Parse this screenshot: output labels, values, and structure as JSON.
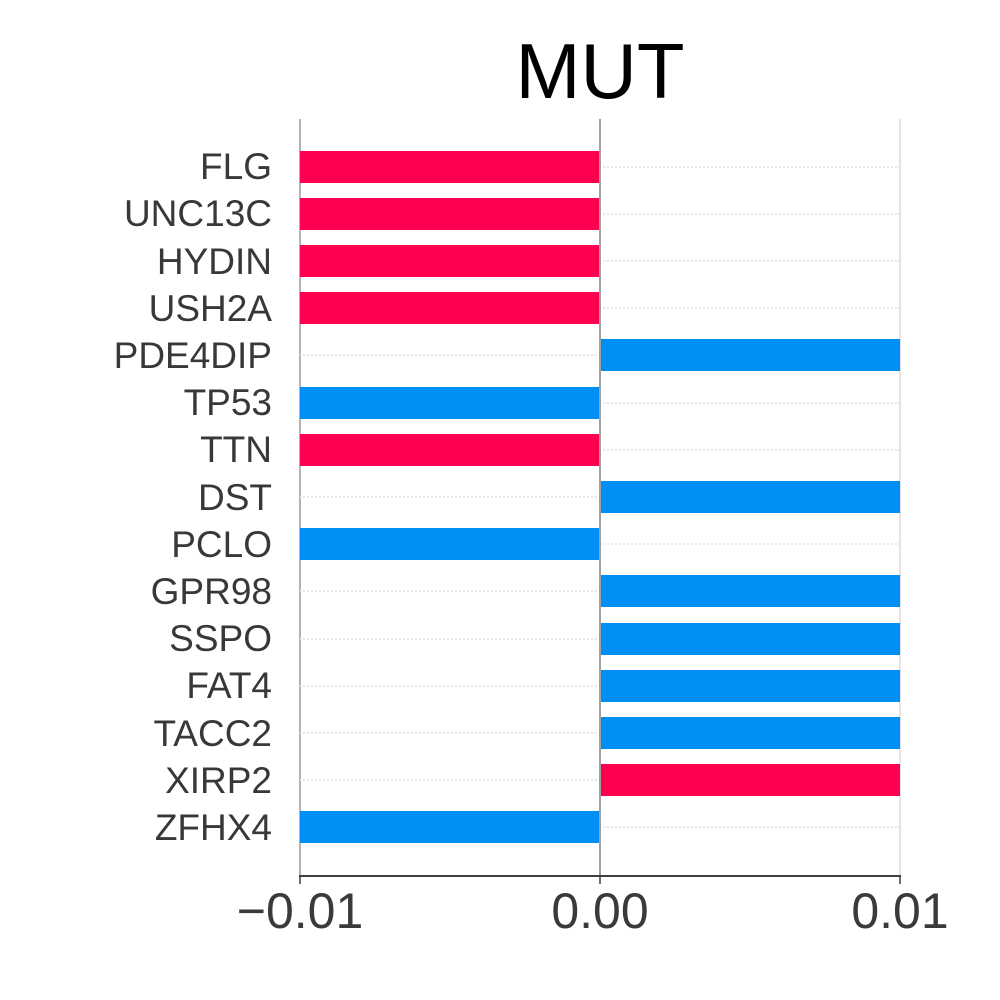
{
  "page": {
    "background": "#FFFFFF"
  },
  "chart_data": {
    "type": "bar",
    "orientation": "horizontal",
    "title": "MUT",
    "categories": [
      "FLG",
      "UNC13C",
      "HYDIN",
      "USH2A",
      "PDE4DIP",
      "TP53",
      "TTN",
      "DST",
      "PCLO",
      "GPR98",
      "SSPO",
      "FAT4",
      "TACC2",
      "XIRP2",
      "ZFHX4"
    ],
    "values": [
      -0.01,
      -0.01,
      -0.01,
      -0.01,
      0.01,
      -0.01,
      -0.01,
      0.01,
      -0.01,
      0.01,
      0.01,
      0.01,
      0.01,
      0.01,
      -0.01
    ],
    "bar_colors": [
      "#FF0051",
      "#FF0051",
      "#FF0051",
      "#FF0051",
      "#008FF5",
      "#008FF5",
      "#FF0051",
      "#008FF5",
      "#008FF5",
      "#008FF5",
      "#008FF5",
      "#008FF5",
      "#008FF5",
      "#FF0051",
      "#008FF5"
    ],
    "palette": {
      "red": "#FF0051",
      "blue": "#008FF5"
    },
    "xlabel": "",
    "ylabel": "",
    "xlim": [
      -0.01,
      0.01
    ],
    "x_ticks": [
      -0.01,
      0,
      0.01
    ],
    "x_tick_labels": [
      "−0.01",
      "0.00",
      "0.01"
    ],
    "grid": {
      "vertical_lines_at": [
        -0.01,
        0,
        0.01
      ],
      "horizontal_dotted_row_lines": true
    },
    "legend": null
  }
}
